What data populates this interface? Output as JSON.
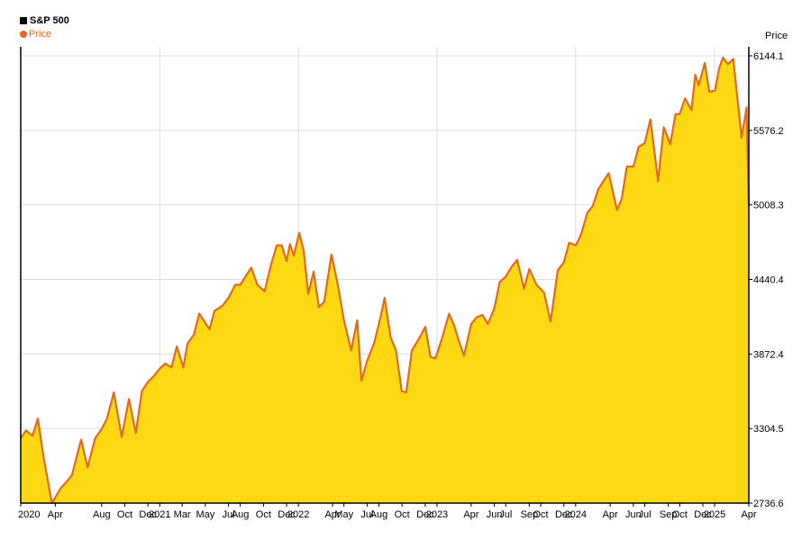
{
  "chart_data": {
    "type": "area",
    "title": "S&P 500",
    "ylabel": "Price",
    "legend": "top-left",
    "grid": true,
    "ylim": [
      2736.6,
      6144.1
    ],
    "y_ticks": [
      2736.6,
      3304.5,
      3872.4,
      4440.4,
      5008.3,
      5576.2,
      6144.1
    ],
    "y_tick_labels": [
      "2736.6",
      "3304.5",
      "3872.4",
      "4440.4",
      "5008.3",
      "5576.2",
      "6144.1"
    ],
    "x_ticks": [
      {
        "date": "2020-01-01",
        "label": "2020"
      },
      {
        "date": "2020-04-01",
        "label": "Apr"
      },
      {
        "date": "2020-08-01",
        "label": "Aug"
      },
      {
        "date": "2020-10-01",
        "label": "Oct"
      },
      {
        "date": "2020-12-01",
        "label": "Dec"
      },
      {
        "date": "2021-01-01",
        "label": "2021"
      },
      {
        "date": "2021-03-01",
        "label": "Mar"
      },
      {
        "date": "2021-05-01",
        "label": "May"
      },
      {
        "date": "2021-07-01",
        "label": "Jul"
      },
      {
        "date": "2021-08-01",
        "label": "Aug"
      },
      {
        "date": "2021-10-01",
        "label": "Oct"
      },
      {
        "date": "2021-12-01",
        "label": "Dec"
      },
      {
        "date": "2022-01-01",
        "label": "2022"
      },
      {
        "date": "2022-04-01",
        "label": "Apr"
      },
      {
        "date": "2022-05-01",
        "label": "May"
      },
      {
        "date": "2022-07-01",
        "label": "Jul"
      },
      {
        "date": "2022-08-01",
        "label": "Aug"
      },
      {
        "date": "2022-10-01",
        "label": "Oct"
      },
      {
        "date": "2022-12-01",
        "label": "Dec"
      },
      {
        "date": "2023-01-01",
        "label": "2023"
      },
      {
        "date": "2023-04-01",
        "label": "Apr"
      },
      {
        "date": "2023-06-01",
        "label": "Jun"
      },
      {
        "date": "2023-07-01",
        "label": "Jul"
      },
      {
        "date": "2023-09-01",
        "label": "Sep"
      },
      {
        "date": "2023-10-01",
        "label": "Oct"
      },
      {
        "date": "2023-12-01",
        "label": "Dec"
      },
      {
        "date": "2024-01-01",
        "label": "2024"
      },
      {
        "date": "2024-04-01",
        "label": "Apr"
      },
      {
        "date": "2024-06-01",
        "label": "Jun"
      },
      {
        "date": "2024-07-01",
        "label": "Jul"
      },
      {
        "date": "2024-09-01",
        "label": "Sep"
      },
      {
        "date": "2024-10-01",
        "label": "Oct"
      },
      {
        "date": "2024-12-01",
        "label": "Dec"
      },
      {
        "date": "2025-01-01",
        "label": "2025"
      },
      {
        "date": "2025-04-01",
        "label": "Apr"
      }
    ],
    "x_range": [
      "2020-01-01",
      "2025-04-01"
    ],
    "vertical_grid_dates": [
      "2021-01-01",
      "2022-01-01",
      "2023-01-01",
      "2024-01-01",
      "2025-01-01"
    ],
    "series": [
      {
        "name": "Price",
        "color": "#E06A1F",
        "fill": "#FFD814",
        "x": [
          "2020-01-01",
          "2020-01-15",
          "2020-02-01",
          "2020-02-15",
          "2020-03-01",
          "2020-03-23",
          "2020-04-15",
          "2020-05-01",
          "2020-05-15",
          "2020-06-08",
          "2020-06-25",
          "2020-07-15",
          "2020-08-01",
          "2020-08-15",
          "2020-09-02",
          "2020-09-23",
          "2020-10-12",
          "2020-10-30",
          "2020-11-15",
          "2020-12-01",
          "2020-12-15",
          "2021-01-01",
          "2021-01-15",
          "2021-02-01",
          "2021-02-15",
          "2021-03-04",
          "2021-03-15",
          "2021-04-01",
          "2021-04-15",
          "2021-05-12",
          "2021-05-25",
          "2021-06-15",
          "2021-07-01",
          "2021-07-19",
          "2021-08-01",
          "2021-08-30",
          "2021-09-15",
          "2021-10-04",
          "2021-10-20",
          "2021-11-05",
          "2021-11-18",
          "2021-12-01",
          "2021-12-10",
          "2021-12-20",
          "2022-01-03",
          "2022-01-15",
          "2022-01-27",
          "2022-02-10",
          "2022-02-24",
          "2022-03-10",
          "2022-03-29",
          "2022-04-15",
          "2022-05-01",
          "2022-05-20",
          "2022-06-05",
          "2022-06-16",
          "2022-07-01",
          "2022-07-20",
          "2022-08-05",
          "2022-08-16",
          "2022-09-01",
          "2022-09-15",
          "2022-09-30",
          "2022-10-12",
          "2022-10-27",
          "2022-11-15",
          "2022-12-01",
          "2022-12-15",
          "2022-12-28",
          "2023-01-15",
          "2023-02-02",
          "2023-02-15",
          "2023-03-01",
          "2023-03-13",
          "2023-04-01",
          "2023-04-15",
          "2023-05-01",
          "2023-05-15",
          "2023-06-01",
          "2023-06-15",
          "2023-07-01",
          "2023-07-15",
          "2023-07-31",
          "2023-08-18",
          "2023-09-01",
          "2023-09-20",
          "2023-10-10",
          "2023-10-27",
          "2023-11-15",
          "2023-12-01",
          "2023-12-15",
          "2024-01-02",
          "2024-01-15",
          "2024-02-01",
          "2024-02-15",
          "2024-03-01",
          "2024-03-28",
          "2024-04-19",
          "2024-05-01",
          "2024-05-15",
          "2024-06-01",
          "2024-06-15",
          "2024-07-01",
          "2024-07-16",
          "2024-08-05",
          "2024-08-20",
          "2024-09-06",
          "2024-09-20",
          "2024-10-01",
          "2024-10-15",
          "2024-11-01",
          "2024-11-11",
          "2024-11-20",
          "2024-12-06",
          "2024-12-18",
          "2025-01-02",
          "2025-01-13",
          "2025-01-23",
          "2025-02-05",
          "2025-02-19",
          "2025-03-01",
          "2025-03-13",
          "2025-03-26",
          "2025-04-01"
        ],
        "values": [
          3230,
          3290,
          3250,
          3380,
          3090,
          2737,
          2850,
          2900,
          2950,
          3220,
          3010,
          3230,
          3300,
          3380,
          3580,
          3240,
          3530,
          3270,
          3590,
          3660,
          3700,
          3760,
          3800,
          3770,
          3930,
          3770,
          3950,
          4020,
          4180,
          4060,
          4200,
          4240,
          4300,
          4400,
          4400,
          4530,
          4400,
          4350,
          4540,
          4700,
          4700,
          4580,
          4710,
          4620,
          4796,
          4660,
          4330,
          4500,
          4230,
          4270,
          4630,
          4400,
          4130,
          3900,
          4130,
          3670,
          3820,
          3960,
          4150,
          4300,
          4000,
          3900,
          3590,
          3580,
          3900,
          3990,
          4080,
          3850,
          3840,
          4000,
          4180,
          4090,
          3960,
          3860,
          4100,
          4150,
          4170,
          4100,
          4220,
          4420,
          4460,
          4530,
          4590,
          4370,
          4520,
          4400,
          4340,
          4120,
          4510,
          4570,
          4720,
          4700,
          4780,
          4950,
          5000,
          5130,
          5250,
          4970,
          5050,
          5300,
          5300,
          5450,
          5480,
          5660,
          5190,
          5600,
          5470,
          5700,
          5700,
          5820,
          5730,
          6000,
          5920,
          6090,
          5870,
          5880,
          6050,
          6130,
          6080,
          6120,
          5850,
          5520,
          5750,
          5000
        ]
      }
    ]
  }
}
